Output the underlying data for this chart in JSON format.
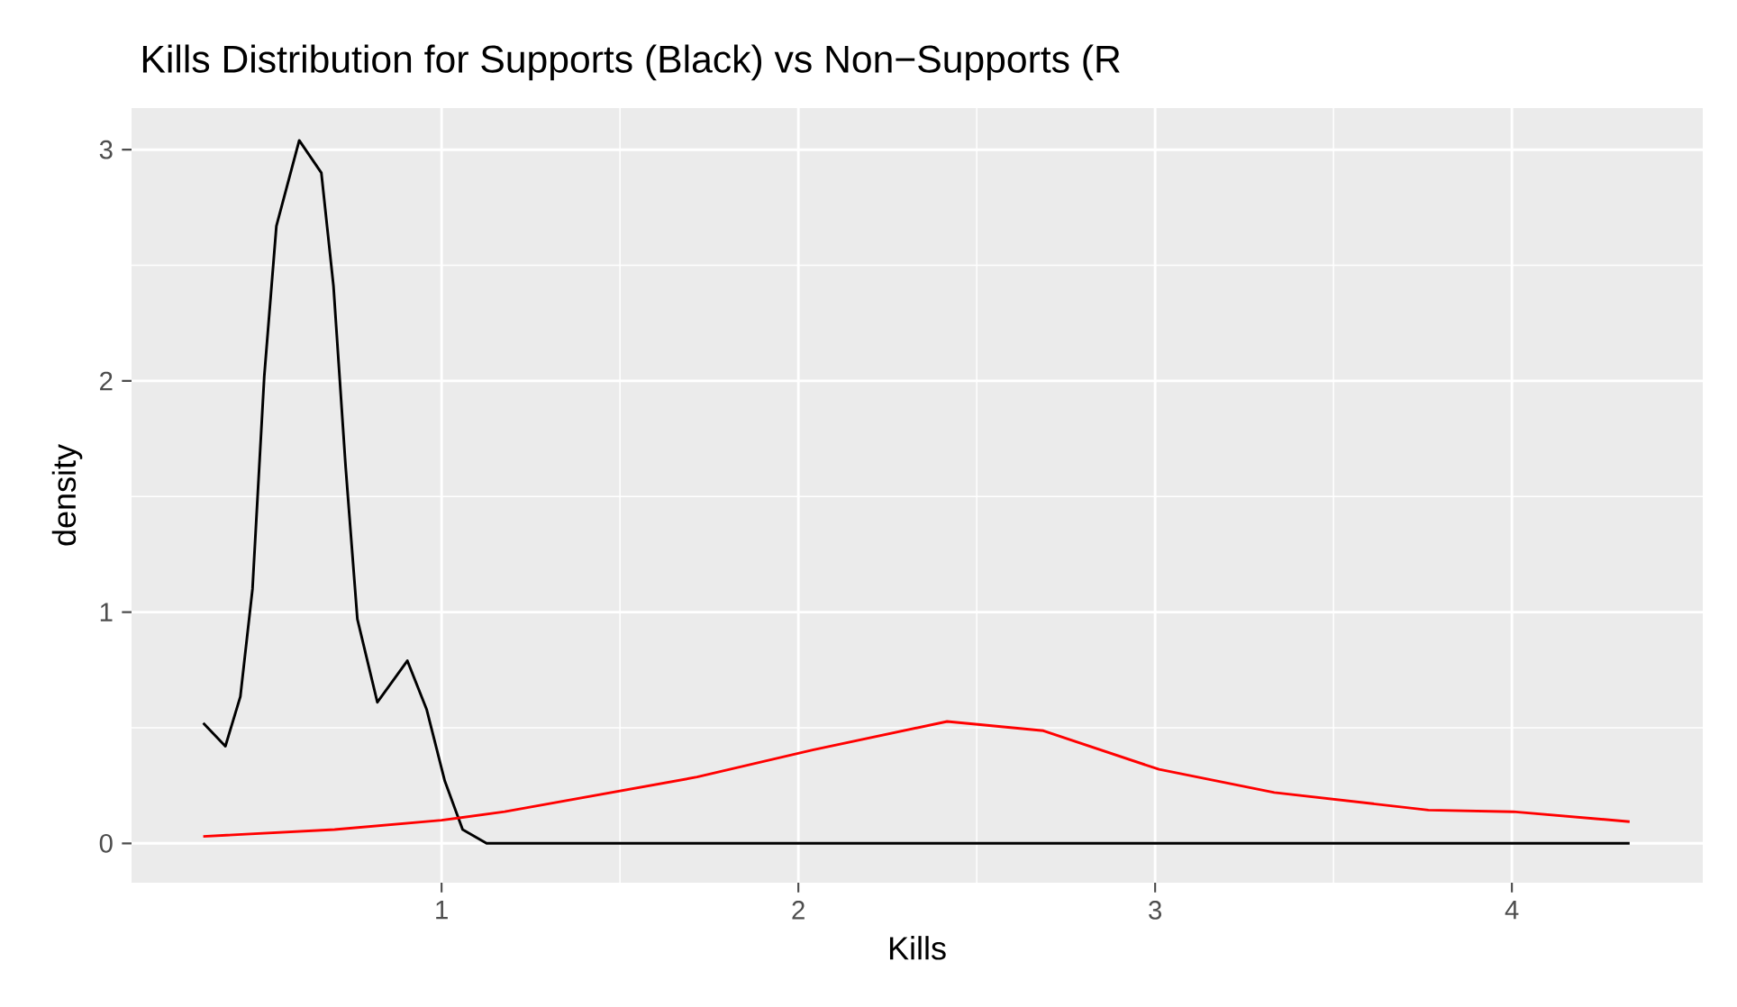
{
  "chart_data": {
    "type": "line",
    "title": "Kills Distribution for Supports (Black) vs Non−Supports (R",
    "xlabel": "Kills",
    "ylabel": "density",
    "xlim": [
      0.131,
      4.535
    ],
    "ylim": [
      -0.17,
      3.18
    ],
    "xticks": [
      1,
      2,
      3,
      4
    ],
    "yticks": [
      0,
      1,
      2,
      3
    ],
    "grid": true,
    "marker": "none",
    "line_style": "solid",
    "series": [
      {
        "color": "#000000",
        "x": [
          0.332,
          0.394,
          0.436,
          0.47,
          0.503,
          0.537,
          0.601,
          0.663,
          0.697,
          0.731,
          0.764,
          0.82,
          0.904,
          0.958,
          1.009,
          1.059,
          1.126,
          2.0,
          3.0,
          4.33
        ],
        "values": [
          0.52,
          0.42,
          0.635,
          1.1,
          2.02,
          2.67,
          3.04,
          2.9,
          2.41,
          1.63,
          0.97,
          0.61,
          0.79,
          0.58,
          0.27,
          0.06,
          0.0,
          0.0,
          0.0,
          0.0
        ]
      },
      {
        "color": "#ff0000",
        "x": [
          0.332,
          0.7,
          1.0,
          1.177,
          1.716,
          2.04,
          2.417,
          2.687,
          3.011,
          3.334,
          3.766,
          4.003,
          4.33
        ],
        "values": [
          0.03,
          0.06,
          0.1,
          0.137,
          0.287,
          0.404,
          0.527,
          0.487,
          0.32,
          0.22,
          0.144,
          0.137,
          0.094
        ]
      }
    ]
  }
}
